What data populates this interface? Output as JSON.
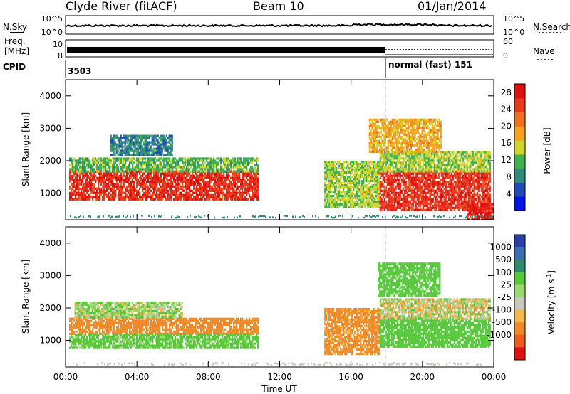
{
  "header": {
    "station": "Clyde River (fitACF)",
    "beam": "Beam 10",
    "date": "01/Jan/2014"
  },
  "time_axis": {
    "label": "Time UT",
    "ticks": [
      "00:00",
      "04:00",
      "08:00",
      "12:00",
      "16:00",
      "20:00",
      "00:00"
    ],
    "tick_hours": [
      0,
      4,
      8,
      12,
      16,
      20,
      24
    ]
  },
  "status_panels": {
    "nsky": {
      "left_label": "N.Sky",
      "right_label": "N.Search",
      "left_ticks": [
        "10^5",
        "10^0"
      ],
      "right_ticks": [
        "10^5",
        "10^0"
      ]
    },
    "freq": {
      "left_label_1": "Freq.",
      "left_label_2": "[MHz]",
      "left_ticks": [
        "10",
        "8"
      ],
      "right_label": "Nave",
      "right_ticks": [
        "60",
        "0"
      ]
    },
    "cpid": {
      "label": "CPID",
      "segments": [
        {
          "start_hour": 0,
          "text": "3503"
        },
        {
          "start_hour": 18,
          "text": "normal (fast) 151"
        }
      ]
    }
  },
  "colors": {
    "power": [
      "#0016e6",
      "#2149b8",
      "#2f8b7a",
      "#3fb34d",
      "#cfd62b",
      "#f5a31e",
      "#f07020",
      "#ea3a1e",
      "#e01010"
    ],
    "velocity": [
      "#e01010",
      "#f05a1e",
      "#f08a28",
      "#f5b84a",
      "#c8c8c0",
      "#9bd86e",
      "#56c83a",
      "#2f8b6a",
      "#3a6fb0",
      "#2a3fa8"
    ]
  },
  "chart_data": [
    {
      "type": "heatmap",
      "title": "",
      "xlabel": "Time UT",
      "ylabel": "Slant Range [km]",
      "xlim": [
        0,
        24
      ],
      "ylim": [
        180,
        4500
      ],
      "yticks": [
        1000,
        2000,
        3000,
        4000
      ],
      "colorbar": {
        "label": "Power [dB]",
        "ticks": [
          4,
          8,
          12,
          16,
          20,
          24,
          28
        ],
        "range": [
          0,
          30
        ]
      },
      "regions": [
        {
          "t": [
            0.2,
            10.8
          ],
          "range": [
            800,
            1700
          ],
          "value": 26
        },
        {
          "t": [
            0.2,
            10.8
          ],
          "range": [
            1700,
            2100
          ],
          "value": 12
        },
        {
          "t": [
            2.5,
            6.0
          ],
          "range": [
            2200,
            2800
          ],
          "value": 8
        },
        {
          "t": [
            14.5,
            17.6
          ],
          "range": [
            600,
            2000
          ],
          "value": 14
        },
        {
          "t": [
            17.6,
            23.8
          ],
          "range": [
            500,
            1700
          ],
          "value": 26
        },
        {
          "t": [
            17.6,
            23.8
          ],
          "range": [
            1700,
            2300
          ],
          "value": 14
        },
        {
          "t": [
            17.0,
            21.0
          ],
          "range": [
            2300,
            3300
          ],
          "value": 18
        },
        {
          "t": [
            22.5,
            24.0
          ],
          "range": [
            200,
            700
          ],
          "value": 28
        }
      ]
    },
    {
      "type": "heatmap",
      "title": "",
      "xlabel": "Time UT",
      "ylabel": "Slant Range [km]",
      "xlim": [
        0,
        24
      ],
      "ylim": [
        180,
        4500
      ],
      "yticks": [
        1000,
        2000,
        3000,
        4000
      ],
      "colorbar": {
        "label": "Velocity [m s^-1]",
        "ticks": [
          "1000",
          "500",
          "100",
          "25",
          "-25",
          "-100",
          "-500",
          "-1000"
        ]
      },
      "regions": [
        {
          "t": [
            0.2,
            10.8
          ],
          "range": [
            1200,
            1700
          ],
          "value": -300
        },
        {
          "t": [
            0.2,
            10.8
          ],
          "range": [
            800,
            1200
          ],
          "value": 200
        },
        {
          "t": [
            0.5,
            6.5
          ],
          "range": [
            1700,
            2200
          ],
          "value": 60
        },
        {
          "t": [
            14.5,
            17.6
          ],
          "range": [
            600,
            2000
          ],
          "value": -200
        },
        {
          "t": [
            17.6,
            23.8
          ],
          "range": [
            800,
            1700
          ],
          "value": 300
        },
        {
          "t": [
            17.6,
            23.8
          ],
          "range": [
            1700,
            2300
          ],
          "value": 0
        },
        {
          "t": [
            17.5,
            21.0
          ],
          "range": [
            2400,
            3400
          ],
          "value": 300
        }
      ]
    }
  ]
}
